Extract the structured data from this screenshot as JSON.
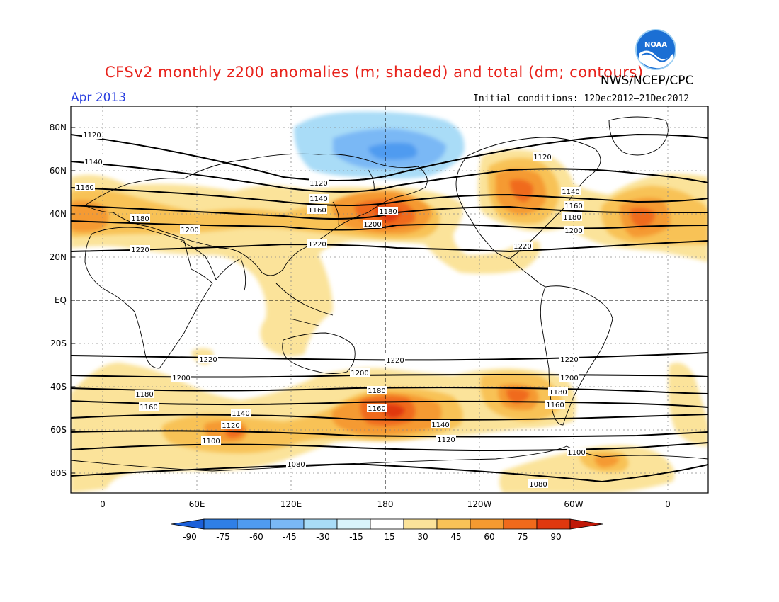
{
  "title": "CFSv2 monthly z200 anomalies (m; shaded) and total (dm; contours)",
  "agency": "NWS/NCEP/CPC",
  "valid_month": "Apr 2013",
  "initial_conditions": "Initial conditions: 12Dec2012–21Dec2012",
  "logo_text": "NOAA",
  "lat_labels": [
    "80N",
    "60N",
    "40N",
    "20N",
    "EQ",
    "20S",
    "40S",
    "60S",
    "80S"
  ],
  "lon_labels": [
    "0",
    "60E",
    "120E",
    "180",
    "120W",
    "60W",
    "0"
  ],
  "colorbar": {
    "labels": [
      "-90",
      "-75",
      "-60",
      "-45",
      "-30",
      "-15",
      "15",
      "30",
      "45",
      "60",
      "75",
      "90"
    ],
    "colors": [
      "#1b5fd9",
      "#2f7fe6",
      "#4f9bf0",
      "#7ab8f5",
      "#a9dcf7",
      "#d9f3fb",
      "#ffffff",
      "#fbe39a",
      "#f8c257",
      "#f59a30",
      "#f06a1b",
      "#e0380e",
      "#c01808"
    ]
  },
  "contour_labels": {
    "north": [
      "1120",
      "1140",
      "1160",
      "1180",
      "1200",
      "1220"
    ],
    "south": [
      "1220",
      "1200",
      "1180",
      "1160",
      "1140",
      "1120",
      "1100",
      "1080"
    ]
  },
  "chart_data": {
    "type": "heatmap",
    "variable": "z200",
    "shading_units": "m",
    "contour_units": "dm",
    "contour_levels": [
      1080,
      1100,
      1120,
      1140,
      1160,
      1180,
      1200,
      1220
    ],
    "positive_anomaly_centers": [
      {
        "region": "North Pacific",
        "lat": 40,
        "lon": 180,
        "max": 75
      },
      {
        "region": "North America",
        "lat": 45,
        "lon": -95,
        "max": 60
      },
      {
        "region": "North Atlantic",
        "lat": 40,
        "lon": -15,
        "max": 60
      },
      {
        "region": "Southern Pacific",
        "lat": -50,
        "lon": 180,
        "max": 75
      },
      {
        "region": "South Indian",
        "lat": -60,
        "lon": 85,
        "max": 60
      },
      {
        "region": "South Pacific east",
        "lat": -45,
        "lon": -95,
        "max": 60
      }
    ],
    "negative_anomaly_centers": [
      {
        "region": "Arctic",
        "lat": 70,
        "lon": 190,
        "min": -45
      }
    ]
  }
}
